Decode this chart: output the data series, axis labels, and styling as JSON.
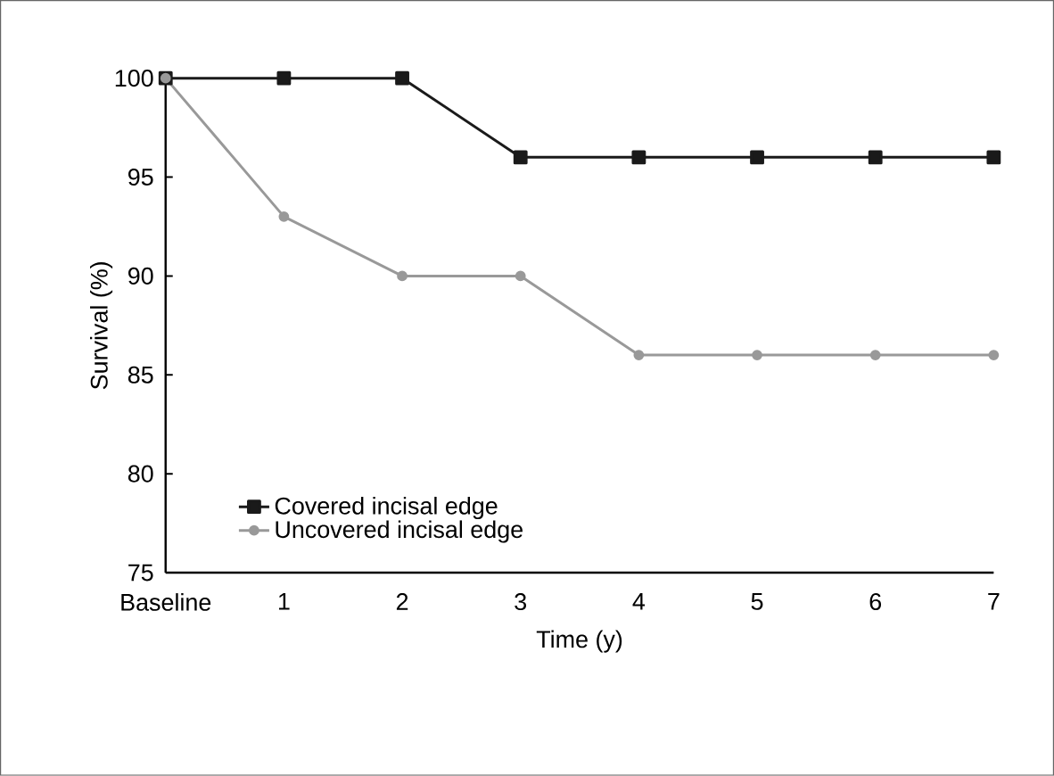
{
  "chart_data": {
    "type": "line",
    "xlabel": "Time (y)",
    "ylabel": "Survival (%)",
    "categories": [
      "Baseline",
      "1",
      "2",
      "3",
      "4",
      "5",
      "6",
      "7"
    ],
    "series": [
      {
        "name": "Covered incisal edge",
        "color": "#1a1a1a",
        "marker": "square",
        "values": [
          100,
          100,
          100,
          96,
          96,
          96,
          96,
          96
        ]
      },
      {
        "name": "Uncovered incisal edge",
        "color": "#999999",
        "marker": "circle",
        "values": [
          100,
          93,
          90,
          90,
          86,
          86,
          86,
          86
        ]
      }
    ],
    "ylim": [
      75,
      100
    ],
    "yticks": [
      75,
      80,
      85,
      90,
      95,
      100
    ],
    "grid": false,
    "legend": "bottom left",
    "line_style": "solid"
  }
}
